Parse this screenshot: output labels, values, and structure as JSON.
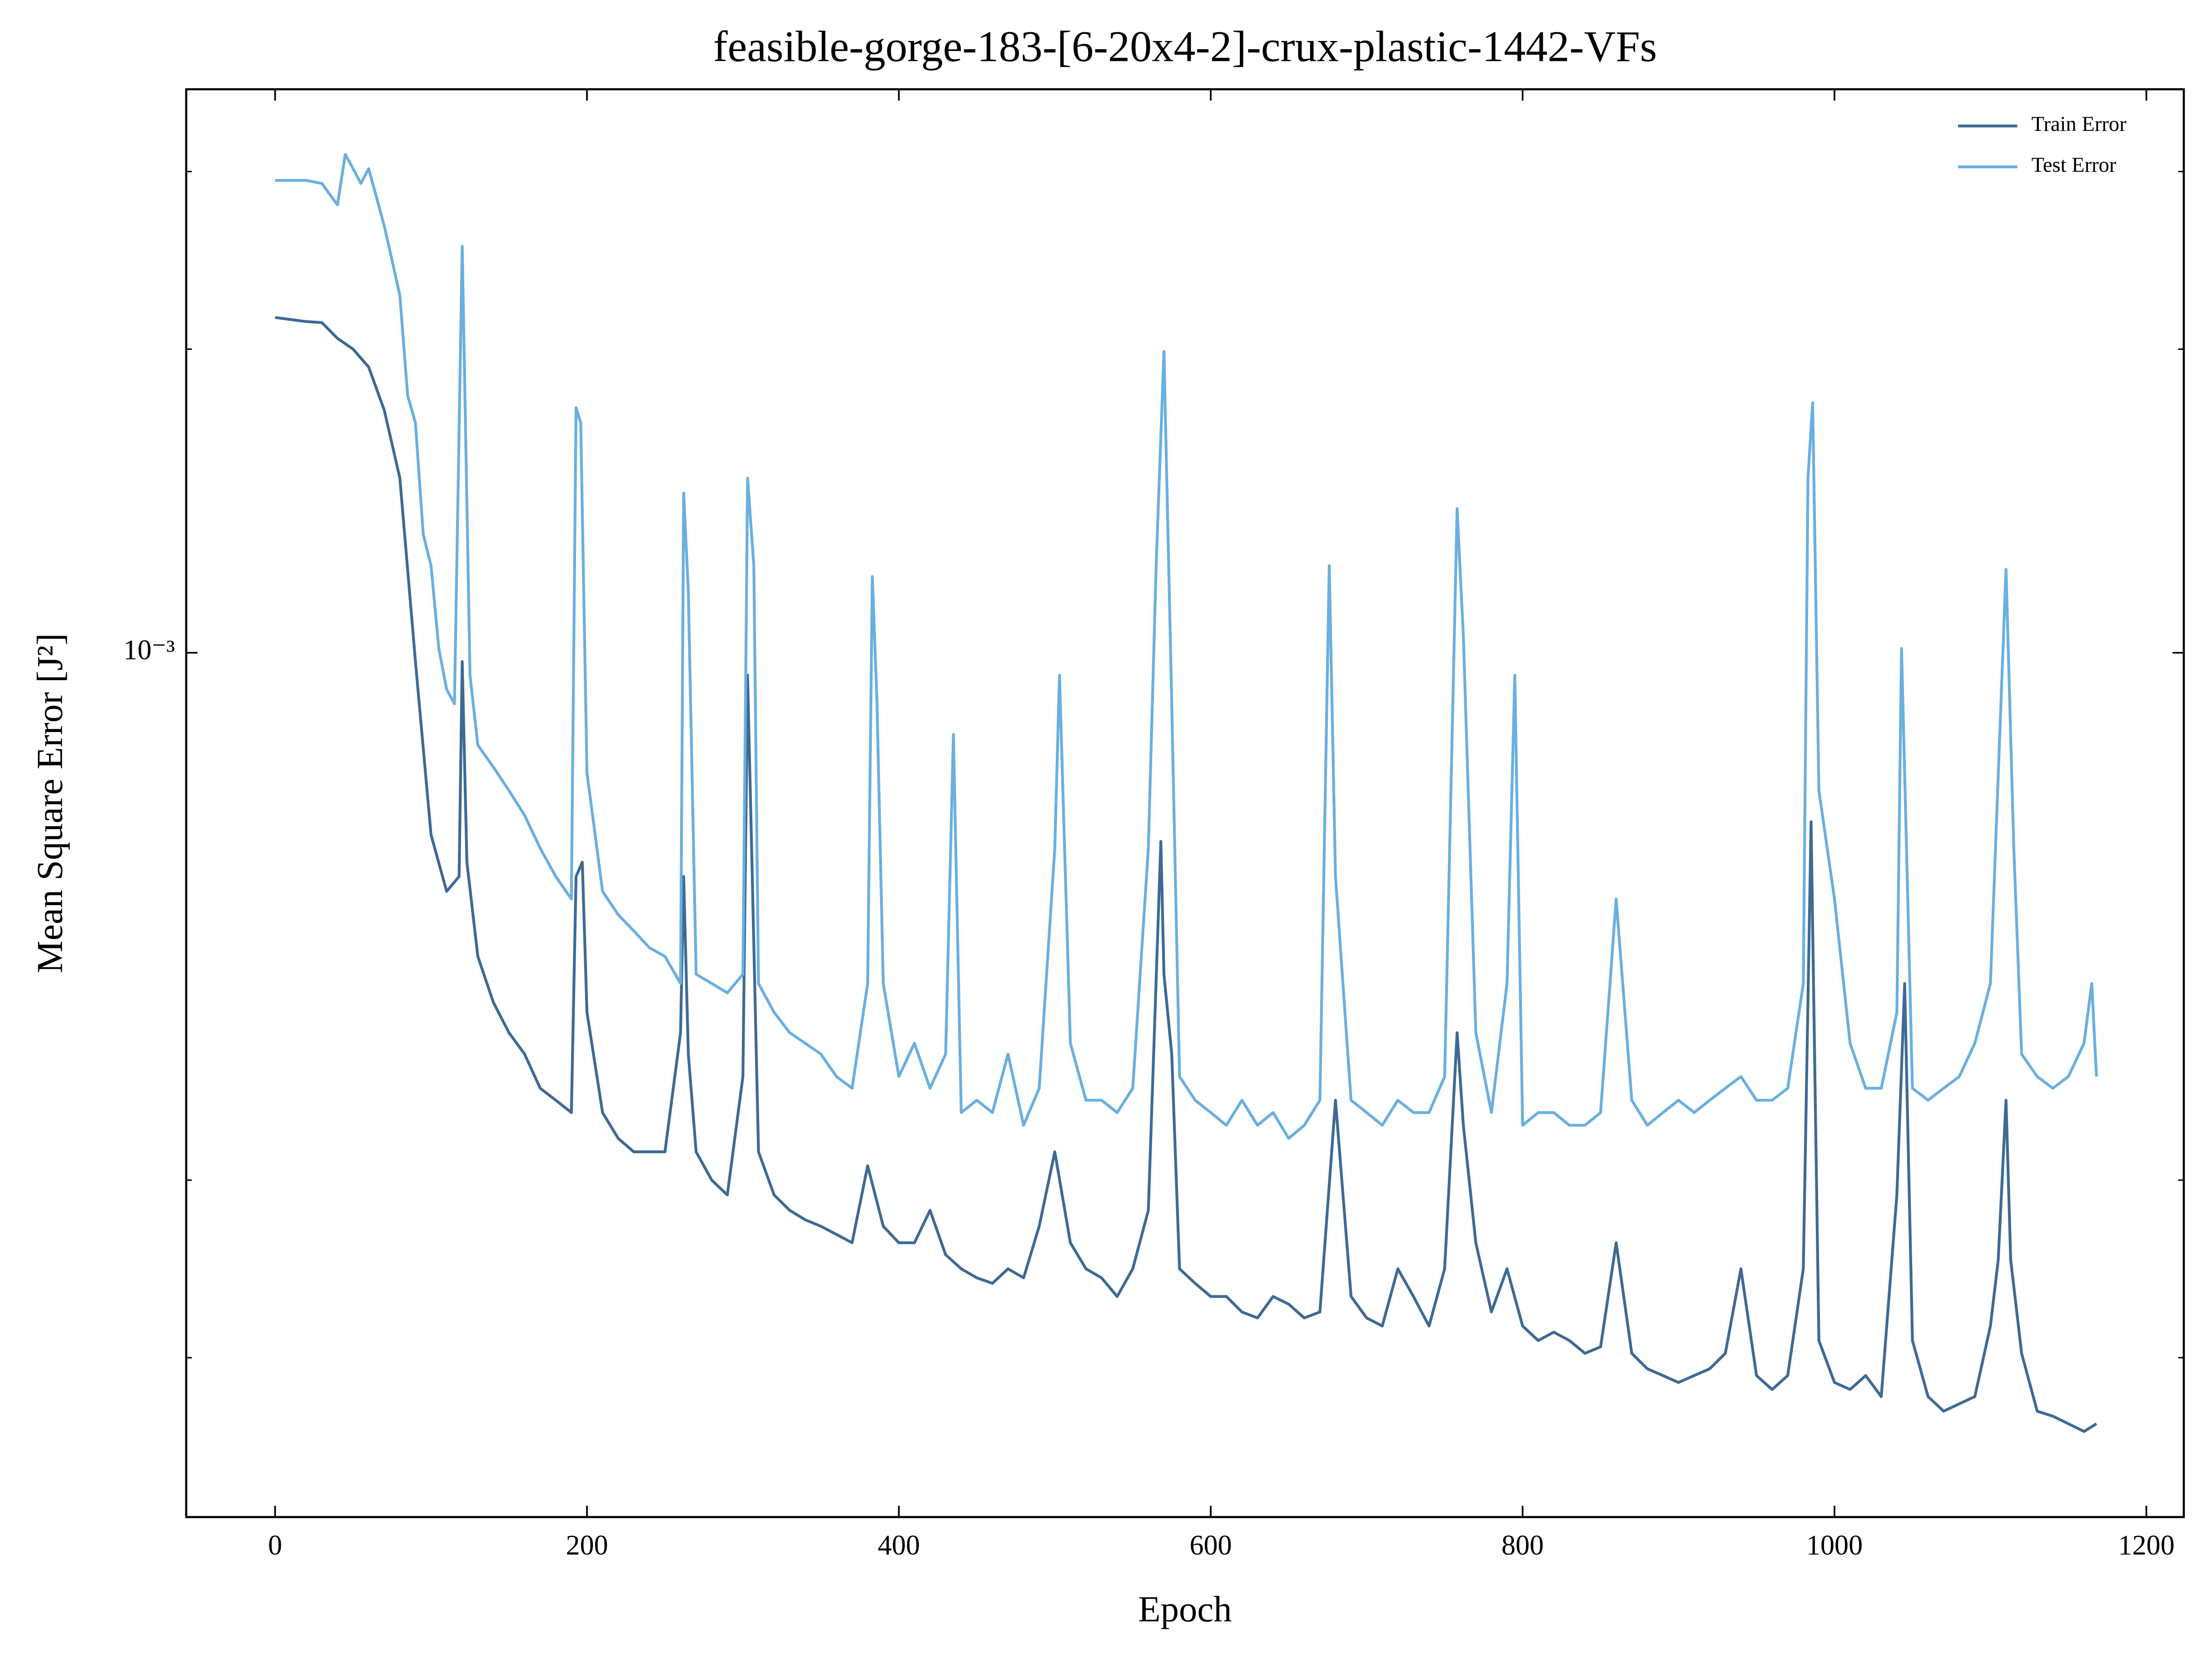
{
  "chart_data": {
    "type": "line",
    "title": "feasible-gorge-183-[6-20x4-2]-crux-plastic-1442-VFs",
    "xlabel": "Epoch",
    "ylabel": "Mean Square Error [J²]",
    "yscale": "log",
    "xlim": [
      -57,
      1224
    ],
    "ylim": [
      0.000139,
      0.00362
    ],
    "xticks": [
      0,
      200,
      400,
      600,
      800,
      1000,
      1200
    ],
    "yticks": [
      {
        "value": 0.001,
        "label": "10⁻³"
      }
    ],
    "yminorticks": [
      0.0002,
      0.0003,
      0.002,
      0.003
    ],
    "grid": false,
    "legend": "upper right",
    "series": [
      {
        "name": "Train Error",
        "color": "#3e6a94",
        "x": [
          0,
          10,
          20,
          30,
          40,
          50,
          60,
          70,
          80,
          90,
          100,
          110,
          118,
          120,
          123,
          130,
          140,
          150,
          160,
          170,
          180,
          190,
          193,
          197,
          200,
          210,
          220,
          230,
          240,
          250,
          260,
          262,
          265,
          270,
          280,
          290,
          300,
          303,
          306,
          310,
          320,
          330,
          340,
          350,
          360,
          370,
          380,
          390,
          400,
          410,
          420,
          430,
          440,
          450,
          460,
          470,
          480,
          490,
          500,
          510,
          520,
          530,
          540,
          550,
          560,
          568,
          570,
          575,
          580,
          590,
          600,
          610,
          620,
          630,
          640,
          650,
          660,
          670,
          680,
          690,
          700,
          710,
          720,
          730,
          740,
          750,
          758,
          762,
          770,
          780,
          790,
          800,
          810,
          820,
          830,
          840,
          850,
          860,
          870,
          880,
          890,
          900,
          910,
          920,
          930,
          940,
          950,
          960,
          970,
          980,
          985,
          990,
          1000,
          1010,
          1020,
          1030,
          1040,
          1045,
          1050,
          1060,
          1070,
          1080,
          1090,
          1100,
          1105,
          1110,
          1113,
          1120,
          1130,
          1140,
          1150,
          1160,
          1168
        ],
        "values": [
          0.00215,
          0.00214,
          0.00213,
          0.002125,
          0.00205,
          0.002,
          0.00192,
          0.00174,
          0.00149,
          0.00098,
          0.00066,
          0.00058,
          0.0006,
          0.00098,
          0.00062,
          0.0005,
          0.00045,
          0.00042,
          0.0004,
          0.00037,
          0.00036,
          0.00035,
          0.0006,
          0.00062,
          0.00044,
          0.00035,
          0.00033,
          0.00032,
          0.00032,
          0.00032,
          0.00042,
          0.0006,
          0.0004,
          0.00032,
          0.0003,
          0.00029,
          0.00038,
          0.00095,
          0.0006,
          0.00032,
          0.00029,
          0.00028,
          0.000274,
          0.00027,
          0.000265,
          0.00026,
          0.00031,
          0.00027,
          0.00026,
          0.00026,
          0.00028,
          0.000253,
          0.000245,
          0.00024,
          0.000237,
          0.000245,
          0.00024,
          0.00027,
          0.00032,
          0.00026,
          0.000245,
          0.00024,
          0.00023,
          0.000245,
          0.00028,
          0.00065,
          0.00048,
          0.0004,
          0.000245,
          0.000237,
          0.00023,
          0.00023,
          0.000222,
          0.000219,
          0.00023,
          0.000226,
          0.000219,
          0.000222,
          0.00036,
          0.00023,
          0.000219,
          0.000215,
          0.000245,
          0.00023,
          0.000215,
          0.000245,
          0.00042,
          0.00034,
          0.00026,
          0.000222,
          0.000245,
          0.000215,
          0.000208,
          0.000212,
          0.000208,
          0.000202,
          0.000205,
          0.00026,
          0.000202,
          0.000195,
          0.000192,
          0.000189,
          0.000192,
          0.000195,
          0.000202,
          0.000245,
          0.000192,
          0.000186,
          0.000192,
          0.000245,
          0.00068,
          0.000208,
          0.000189,
          0.000186,
          0.000192,
          0.000183,
          0.00029,
          0.00047,
          0.000208,
          0.000183,
          0.000177,
          0.00018,
          0.000183,
          0.000215,
          0.00025,
          0.00036,
          0.00025,
          0.000202,
          0.000177,
          0.000175,
          0.000172,
          0.000169,
          0.000172
        ]
      },
      {
        "name": "Test Error",
        "color": "#6aafe0",
        "x": [
          0,
          10,
          20,
          30,
          40,
          45,
          50,
          55,
          60,
          65,
          70,
          75,
          80,
          85,
          90,
          95,
          100,
          105,
          110,
          115,
          120,
          125,
          130,
          140,
          150,
          160,
          170,
          180,
          190,
          193,
          196,
          200,
          210,
          220,
          230,
          240,
          250,
          260,
          262,
          265,
          270,
          280,
          290,
          300,
          303,
          307,
          310,
          320,
          330,
          340,
          350,
          360,
          370,
          380,
          383,
          386,
          390,
          400,
          410,
          420,
          430,
          435,
          440,
          450,
          460,
          470,
          480,
          490,
          500,
          503,
          510,
          520,
          530,
          540,
          550,
          560,
          565,
          570,
          575,
          580,
          590,
          600,
          610,
          620,
          630,
          640,
          650,
          660,
          670,
          676,
          680,
          690,
          700,
          710,
          720,
          730,
          740,
          750,
          758,
          762,
          770,
          780,
          790,
          795,
          800,
          810,
          820,
          830,
          840,
          850,
          860,
          870,
          880,
          890,
          900,
          910,
          920,
          930,
          940,
          950,
          960,
          970,
          980,
          983,
          986,
          990,
          1000,
          1010,
          1020,
          1030,
          1040,
          1043,
          1050,
          1060,
          1070,
          1080,
          1090,
          1100,
          1106,
          1110,
          1115,
          1120,
          1130,
          1140,
          1150,
          1160,
          1165,
          1168
        ],
        "values": [
          0.00294,
          0.00294,
          0.00294,
          0.00292,
          0.00278,
          0.00312,
          0.00302,
          0.00292,
          0.00302,
          0.00283,
          0.00265,
          0.00245,
          0.00226,
          0.0018,
          0.00169,
          0.00131,
          0.00122,
          0.00101,
          0.00092,
          0.00089,
          0.00253,
          0.00095,
          0.00081,
          0.00077,
          0.00073,
          0.00069,
          0.00064,
          0.0006,
          0.00057,
          0.00175,
          0.00169,
          0.00076,
          0.00058,
          0.00055,
          0.00053,
          0.00051,
          0.0005,
          0.00047,
          0.00144,
          0.00115,
          0.00048,
          0.00047,
          0.00046,
          0.00048,
          0.00149,
          0.00122,
          0.00047,
          0.00044,
          0.00042,
          0.00041,
          0.0004,
          0.00038,
          0.00037,
          0.00047,
          0.00119,
          0.00089,
          0.00047,
          0.00038,
          0.00041,
          0.00037,
          0.0004,
          0.00083,
          0.00035,
          0.00036,
          0.00035,
          0.0004,
          0.00034,
          0.00037,
          0.00064,
          0.00095,
          0.00041,
          0.00036,
          0.00036,
          0.00035,
          0.00037,
          0.00064,
          0.00122,
          0.00199,
          0.00089,
          0.00038,
          0.00036,
          0.00035,
          0.00034,
          0.00036,
          0.00034,
          0.00035,
          0.00033,
          0.00034,
          0.00036,
          0.00122,
          0.0006,
          0.00036,
          0.00035,
          0.00034,
          0.00036,
          0.00035,
          0.00035,
          0.00038,
          0.00139,
          0.00104,
          0.00042,
          0.00035,
          0.00047,
          0.00095,
          0.00034,
          0.00035,
          0.00035,
          0.00034,
          0.00034,
          0.00035,
          0.00057,
          0.00036,
          0.00034,
          0.00035,
          0.00036,
          0.00035,
          0.00036,
          0.00037,
          0.00038,
          0.00036,
          0.00036,
          0.00037,
          0.00047,
          0.00149,
          0.00177,
          0.00073,
          0.00057,
          0.00041,
          0.00037,
          0.00037,
          0.00044,
          0.00101,
          0.00037,
          0.00036,
          0.00037,
          0.00038,
          0.00041,
          0.00047,
          0.00083,
          0.00121,
          0.00064,
          0.0004,
          0.00038,
          0.00037,
          0.00038,
          0.00041,
          0.00047,
          0.00038
        ]
      }
    ]
  }
}
